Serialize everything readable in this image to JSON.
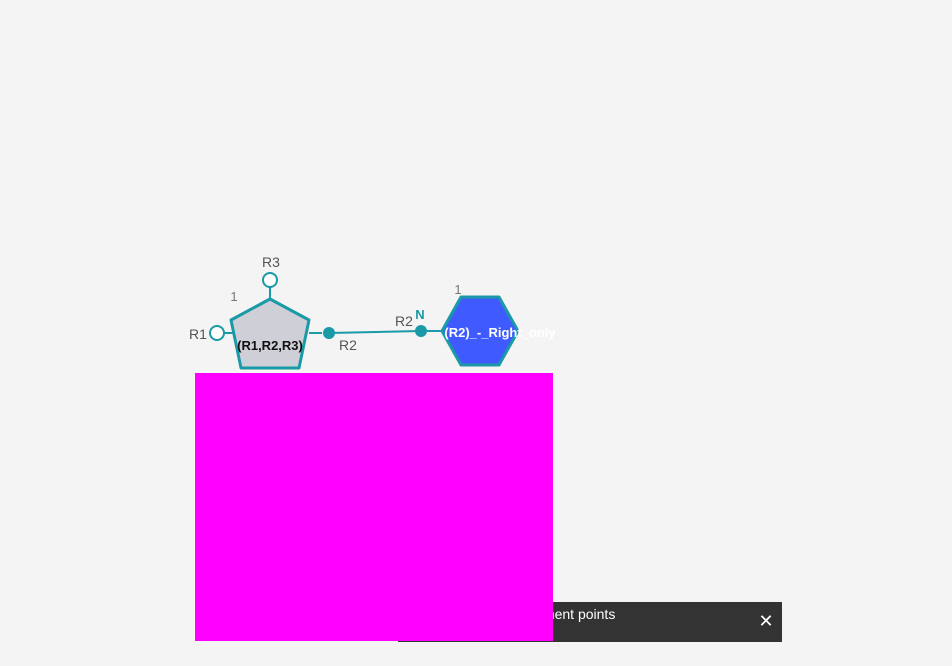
{
  "canvas": {
    "background_color": "#f4f4f4",
    "bond_color": "#1a9aa6",
    "monomer_left": {
      "name": "(R1,R2,R3)",
      "shape": "pentagon",
      "fill": "#cfcfd8",
      "stroke": "#1a9aa6",
      "number_label": "1",
      "attachment_r1": "R1",
      "attachment_r2": "R2",
      "attachment_r3": "R3"
    },
    "monomer_right": {
      "name": "(R2)_-_Right_only",
      "shape": "hexagon",
      "fill": "#3f5bff",
      "stroke": "#1a9aa6",
      "number_label": "1",
      "attachment_r2": "R2",
      "atom_label": "N"
    },
    "occluder_color": "#ff00ff"
  },
  "toast": {
    "message": "Monomers with attachment points",
    "close_icon": "close-icon",
    "background": "#333333"
  }
}
